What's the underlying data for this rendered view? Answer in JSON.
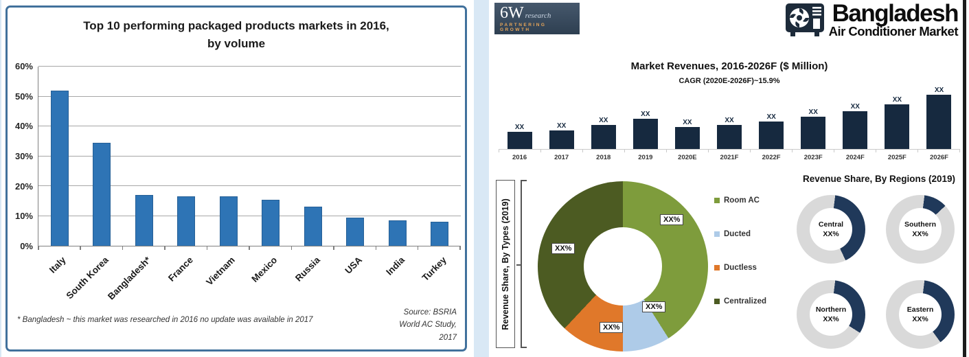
{
  "header": {
    "logo": {
      "name": "6W",
      "suffix": "research",
      "tagline": "PARTNERING GROWTH"
    },
    "brand": {
      "title": "Bangladesh",
      "subtitle": "Air Conditioner Market"
    }
  },
  "left": {
    "title_line1": "Top 10 performing packaged products markets in 2016,",
    "title_line2": "by volume",
    "footnote": "* Bangladesh ~ this market was researched in 2016 no update was available in 2017",
    "source_line1": "Source: BSRIA",
    "source_line2": "World AC Study,",
    "source_line3": "2017"
  },
  "chart_data": [
    {
      "type": "bar",
      "title": "Top 10 performing packaged products markets in 2016, by volume",
      "categories": [
        "Italy",
        "South Korea",
        "Bangladesh*",
        "France",
        "Vietnam",
        "Mexico",
        "Russia",
        "USA",
        "India",
        "Turkey"
      ],
      "values": [
        52,
        34.5,
        17,
        16.5,
        16.5,
        15.5,
        13,
        9.5,
        8.5,
        8
      ],
      "xlabel": "",
      "ylabel": "",
      "ylim": [
        0,
        60
      ],
      "yticks": [
        "0%",
        "10%",
        "20%",
        "30%",
        "40%",
        "50%",
        "60%"
      ],
      "grid": true,
      "bar_color": "#2E74B5",
      "legend_position": "none"
    },
    {
      "type": "bar",
      "title": "Market Revenues, 2016-2026F ($ Million)",
      "subtitle": "CAGR (2020E-2026F)~15.9%",
      "categories": [
        "2016",
        "2017",
        "2018",
        "2019",
        "2020E",
        "2021F",
        "2022F",
        "2023F",
        "2024F",
        "2025F",
        "2026F"
      ],
      "values_masked": true,
      "value_label": "XX",
      "relative_heights": [
        25,
        27,
        35,
        44,
        32,
        35,
        40,
        47,
        55,
        65,
        79
      ],
      "bar_color": "#16293F",
      "grid": false
    },
    {
      "type": "pie",
      "title": "Revenue Share, By Types (2019)",
      "donut": true,
      "slices": [
        {
          "label": "Room AC",
          "value_label": "XX%",
          "est_pct": 41,
          "color": "#7E9C3C"
        },
        {
          "label": "Ducted",
          "value_label": "XX%",
          "est_pct": 9,
          "color": "#AECBE8"
        },
        {
          "label": "Ductless",
          "value_label": "XX%",
          "est_pct": 12,
          "color": "#E0782A"
        },
        {
          "label": "Centralized",
          "value_label": "XX%",
          "est_pct": 38,
          "color": "#4C5B22"
        }
      ],
      "legend_position": "right"
    },
    {
      "type": "pie",
      "title": "Revenue Share, By Regions (2019)",
      "donut": true,
      "ring_color": "#D9D9D9",
      "fill_color": "#20395A",
      "donuts": [
        {
          "label": "Central",
          "value_label": "XX%",
          "est_fill_pct": 41
        },
        {
          "label": "Southern",
          "value_label": "XX%",
          "est_fill_pct": 11
        },
        {
          "label": "Northern",
          "value_label": "XX%",
          "est_fill_pct": 32
        },
        {
          "label": "Eastern",
          "value_label": "XX%",
          "est_fill_pct": 38
        }
      ]
    }
  ]
}
